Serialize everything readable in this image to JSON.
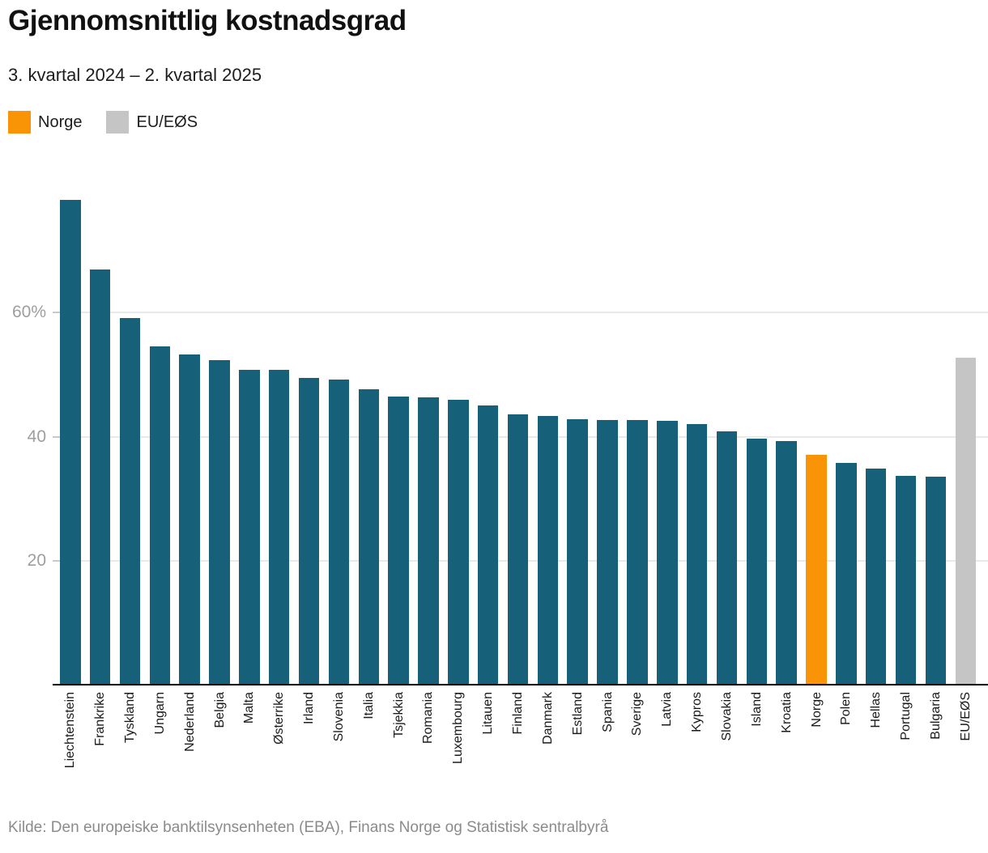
{
  "header": {
    "title": "Gjennomsnittlig kostnadsgrad",
    "subtitle": "3. kvartal 2024 – 2. kvartal 2025"
  },
  "legend": {
    "items": [
      {
        "label": "Norge",
        "color": "#f89406"
      },
      {
        "label": "EU/EØS",
        "color": "#c5c5c5"
      }
    ]
  },
  "chart_data": {
    "type": "bar",
    "title": "Gjennomsnittlig kostnadsgrad",
    "subtitle": "3. kvartal 2024 – 2. kvartal 2025",
    "unit": "%",
    "categories": [
      "Liechtenstein",
      "Frankrike",
      "Tyskland",
      "Ungarn",
      "Nederland",
      "Belgia",
      "Malta",
      "Østerrike",
      "Irland",
      "Slovenia",
      "Italia",
      "Tsjekkia",
      "Romania",
      "Luxembourg",
      "Litauen",
      "Finland",
      "Danmark",
      "Estland",
      "Spania",
      "Sverige",
      "Latvia",
      "Kypros",
      "Slovakia",
      "Island",
      "Kroatia",
      "Norge",
      "Polen",
      "Hellas",
      "Portugal",
      "Bulgaria",
      "EU/EØS"
    ],
    "values": [
      78.2,
      67.0,
      59.1,
      54.6,
      53.3,
      52.3,
      50.8,
      50.8,
      49.5,
      49.2,
      47.6,
      46.5,
      46.3,
      46.0,
      45.0,
      43.6,
      43.3,
      42.8,
      42.7,
      42.7,
      42.5,
      42.1,
      40.8,
      39.7,
      39.3,
      37.1,
      35.8,
      34.8,
      33.7,
      33.6,
      52.8
    ],
    "highlight": {
      "Norge": "#f89406",
      "EU/EØS": "#c5c5c5"
    },
    "bar_color_default": "#16607a",
    "ylim": [
      0,
      80
    ],
    "yticks": [
      {
        "value": 20,
        "label": "20"
      },
      {
        "value": 40,
        "label": "40"
      },
      {
        "value": 60,
        "label": "60%"
      }
    ],
    "grid": true,
    "legend_position": "top-left",
    "xlabel": "",
    "ylabel": ""
  },
  "footer": {
    "source": "Kilde: Den europeiske banktilsynsenheten (EBA), Finans Norge og Statistisk sentralbyrå"
  }
}
